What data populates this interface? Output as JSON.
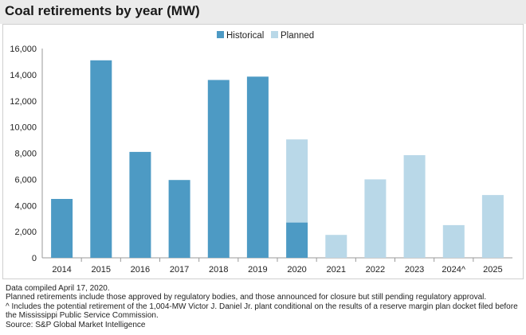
{
  "title": "Coal retirements by year (MW)",
  "colors": {
    "historical": "#4d9ac4",
    "planned": "#b9d8e8",
    "axis": "#9a9a9a",
    "title_bar": "#ebebeb"
  },
  "chart_data": {
    "type": "bar",
    "stacked": true,
    "categories": [
      "2014",
      "2015",
      "2016",
      "2017",
      "2018",
      "2019",
      "2020",
      "2021",
      "2022",
      "2023",
      "2024^",
      "2025"
    ],
    "series": [
      {
        "name": "Historical",
        "values": [
          4500,
          15100,
          8100,
          5950,
          13600,
          13850,
          2700,
          0,
          0,
          0,
          0,
          0
        ]
      },
      {
        "name": "Planned",
        "values": [
          0,
          0,
          0,
          0,
          0,
          0,
          6350,
          1750,
          6000,
          7850,
          2500,
          4800
        ]
      }
    ],
    "yticks": [
      "0",
      "2,000",
      "4,000",
      "6,000",
      "8,000",
      "10,000",
      "12,000",
      "14,000",
      "16,000"
    ],
    "ylim": [
      0,
      16000
    ],
    "grid": false,
    "legend_position": "top-center"
  },
  "notes": [
    "Data compiled April 17, 2020.",
    "Planned retirements include those approved by regulatory bodies, and those announced for closure but still pending regulatory approval.",
    "^ Includes the potential retirement of the 1,004-MW Victor J. Daniel Jr. plant conditional on the results of a reserve margin plan docket filed before the Mississippi Public Service Commission.",
    "Source: S&P Global Market Intelligence"
  ]
}
